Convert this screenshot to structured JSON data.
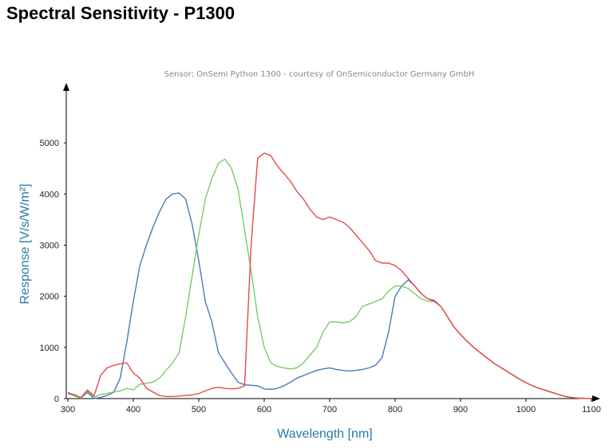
{
  "page": {
    "title": "Spectral Sensitivity - P1300"
  },
  "chart_data": {
    "type": "line",
    "title": "",
    "subtitle": "Sensor: OnSemi Python 1300 - courtesy of OnSemiconductor Germany GmbH",
    "xlabel": "Wavelength [nm]",
    "ylabel": "Response [V/s/W/m²]",
    "axis_label_color": "#2a7aa8",
    "xlim": [
      300,
      1100
    ],
    "ylim": [
      0,
      6000
    ],
    "xticks": [
      300,
      400,
      500,
      600,
      700,
      800,
      900,
      1000,
      1100
    ],
    "yticks": [
      0,
      1000,
      2000,
      3000,
      4000,
      5000
    ],
    "xtick_labels": [
      "300",
      "400",
      "500",
      "600",
      "700",
      "800",
      "900",
      "1000",
      "1100"
    ],
    "ytick_labels": [
      "0",
      "1000",
      "2000",
      "3000",
      "4000",
      "5000"
    ],
    "grid": false,
    "legend": "none",
    "series": [
      {
        "color": "#4a7ab8",
        "x": [
          300,
          310,
          320,
          330,
          340,
          350,
          360,
          370,
          380,
          390,
          400,
          410,
          420,
          430,
          440,
          450,
          460,
          470,
          480,
          490,
          500,
          510,
          520,
          530,
          540,
          550,
          560,
          570,
          580,
          590,
          600,
          610,
          620,
          630,
          640,
          650,
          660,
          670,
          680,
          690,
          700,
          710,
          720,
          730,
          740,
          750,
          760,
          770,
          780,
          790,
          800,
          810,
          820,
          830,
          840,
          850,
          860,
          870,
          880,
          890,
          900,
          910,
          920,
          930,
          940,
          950,
          960,
          970,
          980,
          990,
          1000,
          1010,
          1020,
          1030,
          1040,
          1050,
          1060,
          1070,
          1080,
          1090,
          1100
        ],
        "values": [
          120,
          60,
          10,
          120,
          0,
          20,
          60,
          120,
          400,
          1100,
          1900,
          2600,
          3000,
          3350,
          3650,
          3900,
          4000,
          4020,
          3900,
          3400,
          2700,
          1900,
          1500,
          900,
          700,
          500,
          320,
          270,
          260,
          250,
          190,
          180,
          200,
          250,
          320,
          400,
          450,
          500,
          550,
          580,
          600,
          570,
          550,
          540,
          550,
          570,
          600,
          650,
          800,
          1300,
          2000,
          2200,
          2320,
          2200,
          2050,
          1950,
          1920,
          1800,
          1600,
          1400,
          1250,
          1120,
          1000,
          900,
          800,
          700,
          620,
          540,
          460,
          380,
          310,
          250,
          200,
          160,
          120,
          80,
          40,
          20,
          10,
          5,
          2
        ]
      },
      {
        "color": "#7cc96a",
        "x": [
          300,
          310,
          320,
          330,
          340,
          350,
          360,
          370,
          380,
          390,
          400,
          410,
          420,
          430,
          440,
          450,
          460,
          470,
          480,
          490,
          500,
          510,
          520,
          530,
          540,
          550,
          560,
          570,
          580,
          590,
          600,
          610,
          620,
          630,
          640,
          650,
          660,
          670,
          680,
          690,
          700,
          710,
          720,
          730,
          740,
          750,
          760,
          770,
          780,
          790,
          800,
          810,
          820,
          830,
          840,
          850,
          860,
          870,
          880,
          890,
          900,
          910,
          920,
          930,
          940,
          950,
          960,
          970,
          980,
          990,
          1000,
          1010,
          1020,
          1030,
          1040,
          1050,
          1060,
          1070,
          1080,
          1090,
          1100
        ],
        "values": [
          100,
          50,
          10,
          150,
          20,
          80,
          100,
          130,
          150,
          200,
          170,
          280,
          300,
          320,
          400,
          550,
          700,
          900,
          1600,
          2400,
          3200,
          3900,
          4300,
          4600,
          4680,
          4500,
          4100,
          3300,
          2500,
          1600,
          1000,
          700,
          630,
          600,
          580,
          600,
          700,
          850,
          1000,
          1300,
          1500,
          1500,
          1480,
          1500,
          1600,
          1800,
          1850,
          1900,
          1950,
          2100,
          2200,
          2200,
          2150,
          2050,
          1950,
          1900,
          1900,
          1800,
          1600,
          1400,
          1250,
          1120,
          1000,
          900,
          800,
          700,
          620,
          540,
          460,
          380,
          310,
          250,
          200,
          160,
          120,
          80,
          40,
          20,
          10,
          5,
          2
        ]
      },
      {
        "color": "#e84a4a",
        "x": [
          300,
          310,
          320,
          330,
          340,
          350,
          360,
          370,
          380,
          390,
          400,
          410,
          420,
          430,
          440,
          450,
          460,
          470,
          480,
          490,
          500,
          510,
          520,
          530,
          540,
          550,
          560,
          570,
          580,
          590,
          600,
          610,
          620,
          630,
          640,
          650,
          660,
          670,
          680,
          690,
          700,
          710,
          720,
          730,
          740,
          750,
          760,
          770,
          780,
          790,
          800,
          810,
          820,
          830,
          840,
          850,
          860,
          870,
          880,
          890,
          900,
          910,
          920,
          930,
          940,
          950,
          960,
          970,
          980,
          990,
          1000,
          1010,
          1020,
          1030,
          1040,
          1050,
          1060,
          1070,
          1080,
          1090,
          1100
        ],
        "values": [
          100,
          80,
          20,
          170,
          50,
          450,
          600,
          650,
          680,
          700,
          500,
          400,
          200,
          130,
          60,
          40,
          40,
          50,
          60,
          70,
          100,
          150,
          200,
          220,
          200,
          190,
          200,
          250,
          3000,
          4700,
          4800,
          4750,
          4550,
          4400,
          4250,
          4050,
          3900,
          3700,
          3550,
          3500,
          3550,
          3500,
          3450,
          3350,
          3200,
          3050,
          2900,
          2700,
          2650,
          2650,
          2600,
          2500,
          2350,
          2200,
          2050,
          1950,
          1900,
          1800,
          1600,
          1400,
          1250,
          1120,
          1000,
          900,
          800,
          700,
          620,
          540,
          460,
          380,
          310,
          250,
          200,
          160,
          120,
          80,
          40,
          20,
          10,
          5,
          2
        ]
      }
    ]
  }
}
